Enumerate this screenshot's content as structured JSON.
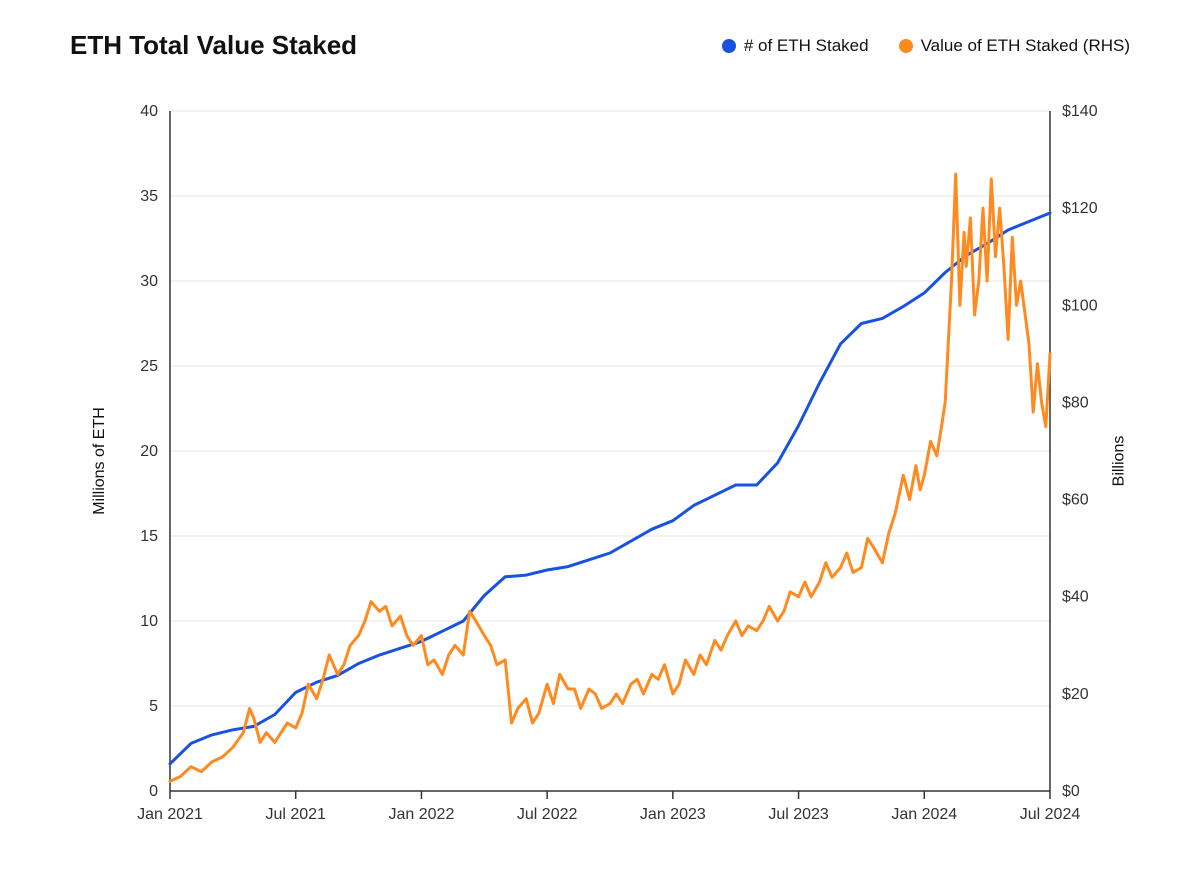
{
  "chart": {
    "type": "line-dual-axis",
    "title": "ETH Total Value Staked",
    "title_fontsize": 26,
    "title_fontweight": 700,
    "background_color": "#ffffff",
    "grid_color": "#e5e5e5",
    "axis_line_color": "#333333",
    "tick_label_color": "#333333",
    "tick_fontsize": 16,
    "axis_label_fontsize": 16,
    "legend_fontsize": 17,
    "line_width": 3,
    "legend_dot_radius": 7,
    "y_left": {
      "label": "Millions of ETH",
      "min": 0,
      "max": 40,
      "ticks": [
        0,
        5,
        10,
        15,
        20,
        25,
        30,
        35,
        40
      ]
    },
    "y_right": {
      "label": "Billions",
      "min": 0,
      "max": 140,
      "ticks": [
        0,
        20,
        40,
        60,
        80,
        100,
        120,
        140
      ],
      "tick_labels": [
        "$0",
        "$20",
        "$40",
        "$60",
        "$80",
        "$100",
        "$120",
        "$140"
      ]
    },
    "x": {
      "min": 0,
      "max": 42,
      "ticks": [
        0,
        6,
        12,
        18,
        24,
        30,
        36,
        42
      ],
      "tick_labels": [
        "Jan 2021",
        "Jul 2021",
        "Jan 2022",
        "Jul 2022",
        "Jan 2023",
        "Jul 2023",
        "Jan 2024",
        "Jul 2024"
      ]
    },
    "series": [
      {
        "name": "# of ETH Staked",
        "axis": "left",
        "color": "#1952e0",
        "data": [
          [
            0,
            1.6
          ],
          [
            1,
            2.8
          ],
          [
            2,
            3.3
          ],
          [
            3,
            3.6
          ],
          [
            4,
            3.8
          ],
          [
            5,
            4.5
          ],
          [
            6,
            5.8
          ],
          [
            7,
            6.4
          ],
          [
            8,
            6.8
          ],
          [
            9,
            7.5
          ],
          [
            10,
            8.0
          ],
          [
            11,
            8.4
          ],
          [
            12,
            8.8
          ],
          [
            13,
            9.4
          ],
          [
            14,
            10.0
          ],
          [
            15,
            11.5
          ],
          [
            16,
            12.6
          ],
          [
            17,
            12.7
          ],
          [
            18,
            13.0
          ],
          [
            19,
            13.2
          ],
          [
            20,
            13.6
          ],
          [
            21,
            14.0
          ],
          [
            22,
            14.7
          ],
          [
            23,
            15.4
          ],
          [
            24,
            15.9
          ],
          [
            25,
            16.8
          ],
          [
            26,
            17.4
          ],
          [
            27,
            18.0
          ],
          [
            28,
            18.0
          ],
          [
            29,
            19.3
          ],
          [
            30,
            21.5
          ],
          [
            31,
            24.0
          ],
          [
            32,
            26.3
          ],
          [
            33,
            27.5
          ],
          [
            34,
            27.8
          ],
          [
            35,
            28.5
          ],
          [
            36,
            29.3
          ],
          [
            37,
            30.5
          ],
          [
            38,
            31.5
          ],
          [
            39,
            32.2
          ],
          [
            40,
            33.0
          ],
          [
            41,
            33.5
          ],
          [
            42,
            34.0
          ]
        ]
      },
      {
        "name": "Value of ETH Staked (RHS)",
        "axis": "right",
        "color": "#ff8a1f",
        "data": [
          [
            0,
            2
          ],
          [
            0.5,
            3
          ],
          [
            1,
            5
          ],
          [
            1.5,
            4
          ],
          [
            2,
            6
          ],
          [
            2.5,
            7
          ],
          [
            3,
            9
          ],
          [
            3.5,
            12
          ],
          [
            3.8,
            17
          ],
          [
            4,
            15
          ],
          [
            4.3,
            10
          ],
          [
            4.6,
            12
          ],
          [
            5,
            10
          ],
          [
            5.3,
            12
          ],
          [
            5.6,
            14
          ],
          [
            6,
            13
          ],
          [
            6.3,
            16
          ],
          [
            6.6,
            22
          ],
          [
            7,
            19
          ],
          [
            7.3,
            23
          ],
          [
            7.6,
            28
          ],
          [
            8,
            24
          ],
          [
            8.3,
            26
          ],
          [
            8.6,
            30
          ],
          [
            9,
            32
          ],
          [
            9.3,
            35
          ],
          [
            9.6,
            39
          ],
          [
            10,
            37
          ],
          [
            10.3,
            38
          ],
          [
            10.6,
            34
          ],
          [
            11,
            36
          ],
          [
            11.3,
            32
          ],
          [
            11.6,
            30
          ],
          [
            12,
            32
          ],
          [
            12.3,
            26
          ],
          [
            12.6,
            27
          ],
          [
            13,
            24
          ],
          [
            13.3,
            28
          ],
          [
            13.6,
            30
          ],
          [
            14,
            28
          ],
          [
            14.3,
            37
          ],
          [
            14.6,
            35
          ],
          [
            15,
            32
          ],
          [
            15.3,
            30
          ],
          [
            15.6,
            26
          ],
          [
            16,
            27
          ],
          [
            16.3,
            14
          ],
          [
            16.6,
            17
          ],
          [
            17,
            19
          ],
          [
            17.3,
            14
          ],
          [
            17.6,
            16
          ],
          [
            18,
            22
          ],
          [
            18.3,
            18
          ],
          [
            18.6,
            24
          ],
          [
            19,
            21
          ],
          [
            19.3,
            21
          ],
          [
            19.6,
            17
          ],
          [
            20,
            21
          ],
          [
            20.3,
            20
          ],
          [
            20.6,
            17
          ],
          [
            21,
            18
          ],
          [
            21.3,
            20
          ],
          [
            21.6,
            18
          ],
          [
            22,
            22
          ],
          [
            22.3,
            23
          ],
          [
            22.6,
            20
          ],
          [
            23,
            24
          ],
          [
            23.3,
            23
          ],
          [
            23.6,
            26
          ],
          [
            24,
            20
          ],
          [
            24.3,
            22
          ],
          [
            24.6,
            27
          ],
          [
            25,
            24
          ],
          [
            25.3,
            28
          ],
          [
            25.6,
            26
          ],
          [
            26,
            31
          ],
          [
            26.3,
            29
          ],
          [
            26.6,
            32
          ],
          [
            27,
            35
          ],
          [
            27.3,
            32
          ],
          [
            27.6,
            34
          ],
          [
            28,
            33
          ],
          [
            28.3,
            35
          ],
          [
            28.6,
            38
          ],
          [
            29,
            35
          ],
          [
            29.3,
            37
          ],
          [
            29.6,
            41
          ],
          [
            30,
            40
          ],
          [
            30.3,
            43
          ],
          [
            30.6,
            40
          ],
          [
            31,
            43
          ],
          [
            31.3,
            47
          ],
          [
            31.6,
            44
          ],
          [
            32,
            46
          ],
          [
            32.3,
            49
          ],
          [
            32.6,
            45
          ],
          [
            33,
            46
          ],
          [
            33.3,
            52
          ],
          [
            33.6,
            50
          ],
          [
            34,
            47
          ],
          [
            34.3,
            53
          ],
          [
            34.6,
            57
          ],
          [
            35,
            65
          ],
          [
            35.3,
            60
          ],
          [
            35.6,
            67
          ],
          [
            35.8,
            62
          ],
          [
            36,
            65
          ],
          [
            36.3,
            72
          ],
          [
            36.6,
            69
          ],
          [
            37,
            80
          ],
          [
            37.3,
            105
          ],
          [
            37.5,
            127
          ],
          [
            37.7,
            100
          ],
          [
            37.9,
            115
          ],
          [
            38,
            108
          ],
          [
            38.2,
            118
          ],
          [
            38.4,
            98
          ],
          [
            38.6,
            105
          ],
          [
            38.8,
            120
          ],
          [
            39,
            105
          ],
          [
            39.2,
            126
          ],
          [
            39.4,
            110
          ],
          [
            39.6,
            120
          ],
          [
            39.8,
            108
          ],
          [
            40,
            93
          ],
          [
            40.2,
            114
          ],
          [
            40.4,
            100
          ],
          [
            40.6,
            105
          ],
          [
            41,
            92
          ],
          [
            41.2,
            78
          ],
          [
            41.4,
            88
          ],
          [
            41.6,
            80
          ],
          [
            41.8,
            75
          ],
          [
            42,
            90
          ]
        ]
      }
    ]
  }
}
